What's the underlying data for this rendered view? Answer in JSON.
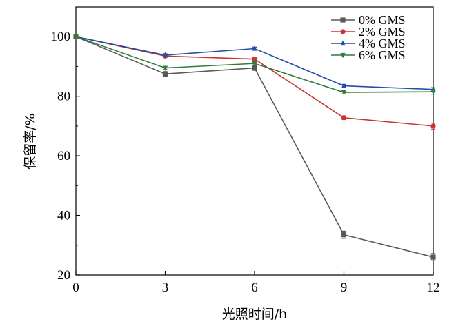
{
  "chart_data": {
    "type": "line",
    "title": "",
    "xlabel": "光照时间/h",
    "ylabel": "保留率/%",
    "x": [
      0,
      3,
      6,
      9,
      12
    ],
    "xlim": [
      0,
      12
    ],
    "ylim": [
      20,
      110
    ],
    "xticks": [
      0,
      3,
      6,
      9,
      12
    ],
    "yticks": [
      20,
      40,
      60,
      80,
      100
    ],
    "grid": false,
    "legend_position": "top-right",
    "series": [
      {
        "name": "0% GMS",
        "values": [
          100,
          87.5,
          89.5,
          33.5,
          26.0
        ],
        "errors": [
          0.5,
          0.8,
          0.8,
          1.2,
          1.2
        ],
        "color": "#595959",
        "marker": "square"
      },
      {
        "name": "2% GMS",
        "values": [
          100,
          93.5,
          92.5,
          72.8,
          70.0
        ],
        "errors": [
          0.5,
          0.5,
          0.5,
          0.6,
          1.0
        ],
        "color": "#cc3333",
        "marker": "circle"
      },
      {
        "name": "4% GMS",
        "values": [
          100,
          93.8,
          96.0,
          83.5,
          82.3
        ],
        "errors": [
          0.5,
          0.5,
          0.5,
          0.5,
          0.6
        ],
        "color": "#1f4fa8",
        "marker": "triangle-up"
      },
      {
        "name": "6% GMS",
        "values": [
          100,
          89.5,
          91.0,
          81.3,
          81.5
        ],
        "errors": [
          0.5,
          0.5,
          0.5,
          0.5,
          0.8
        ],
        "color": "#2e7d3a",
        "marker": "triangle-down"
      }
    ]
  }
}
